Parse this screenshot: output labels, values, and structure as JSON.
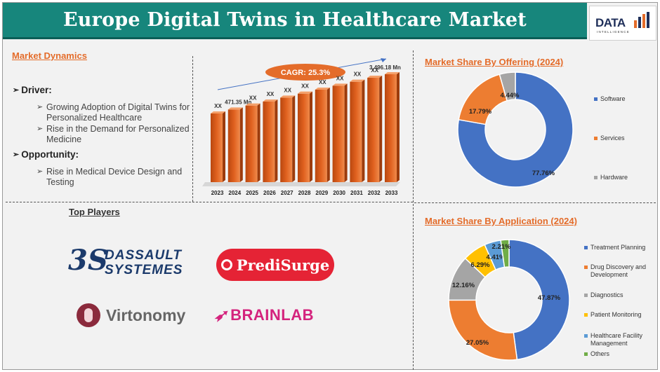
{
  "header": {
    "title": "Europe Digital Twins in Healthcare Market",
    "logo_text": "DATA",
    "logo_sub": "INTELLIGENCE"
  },
  "dynamics": {
    "heading": "Market Dynamics",
    "driver_label": "Driver:",
    "drivers": [
      "Growing Adoption of Digital Twins for Personalized Healthcare",
      "Rise in the Demand for Personalized Medicine"
    ],
    "opportunity_label": "Opportunity:",
    "opportunities": [
      "Rise in Medical Device Design and Testing"
    ]
  },
  "players": {
    "heading": "Top Players",
    "dassault_line1": "DASSAULT",
    "dassault_line2": "SYSTEMES",
    "dassault_mark": "3S",
    "predisurge": "PrediSurge",
    "virtonomy": "Virtonomy",
    "brainlab": "BRAINLAB"
  },
  "colors": {
    "accent": "#e46c2a",
    "header": "#17867c",
    "bar": "#e0611f",
    "software": "#4472c4",
    "services": "#ed7d31",
    "hardware": "#a5a5a5",
    "patient_monitoring": "#ffc000",
    "facility": "#5b9bd5",
    "others": "#70ad47"
  },
  "chart_data": [
    {
      "type": "bar",
      "categories": [
        "2023",
        "2024",
        "2025",
        "2026",
        "2027",
        "2028",
        "2029",
        "2030",
        "2031",
        "2032",
        "2033"
      ],
      "values": [
        null,
        471.35,
        null,
        null,
        null,
        null,
        null,
        null,
        null,
        null,
        3496.18
      ],
      "data_labels": [
        "XX",
        "471.35 Mn",
        "XX",
        "XX",
        "XX",
        "XX",
        "XX",
        "XX",
        "XX",
        "XX",
        "3,496.18 Mn"
      ],
      "annotation": "CAGR: 25.3%",
      "title": "",
      "xlabel": "",
      "ylabel": ""
    },
    {
      "type": "pie",
      "title": "Market Share By Offering (2024)",
      "labels": [
        "Software",
        "Services",
        "Hardware"
      ],
      "values": [
        77.76,
        17.79,
        4.44
      ],
      "value_labels": [
        "77.76%",
        "17.79%",
        "4.44%"
      ],
      "legend": "right"
    },
    {
      "type": "pie",
      "title": "Market Share By Application (2024)",
      "labels": [
        "Treatment Planning",
        "Drug Discovery and Development",
        "Diagnostics",
        "Patient Monitoring",
        "Healthcare Facility Management",
        "Others"
      ],
      "values": [
        47.87,
        27.05,
        12.16,
        6.29,
        4.41,
        2.21
      ],
      "value_labels": [
        "47.87%",
        "27.05%",
        "12.16%",
        "6.29%",
        "4.41%",
        "2.21%"
      ],
      "legend": "right"
    }
  ]
}
